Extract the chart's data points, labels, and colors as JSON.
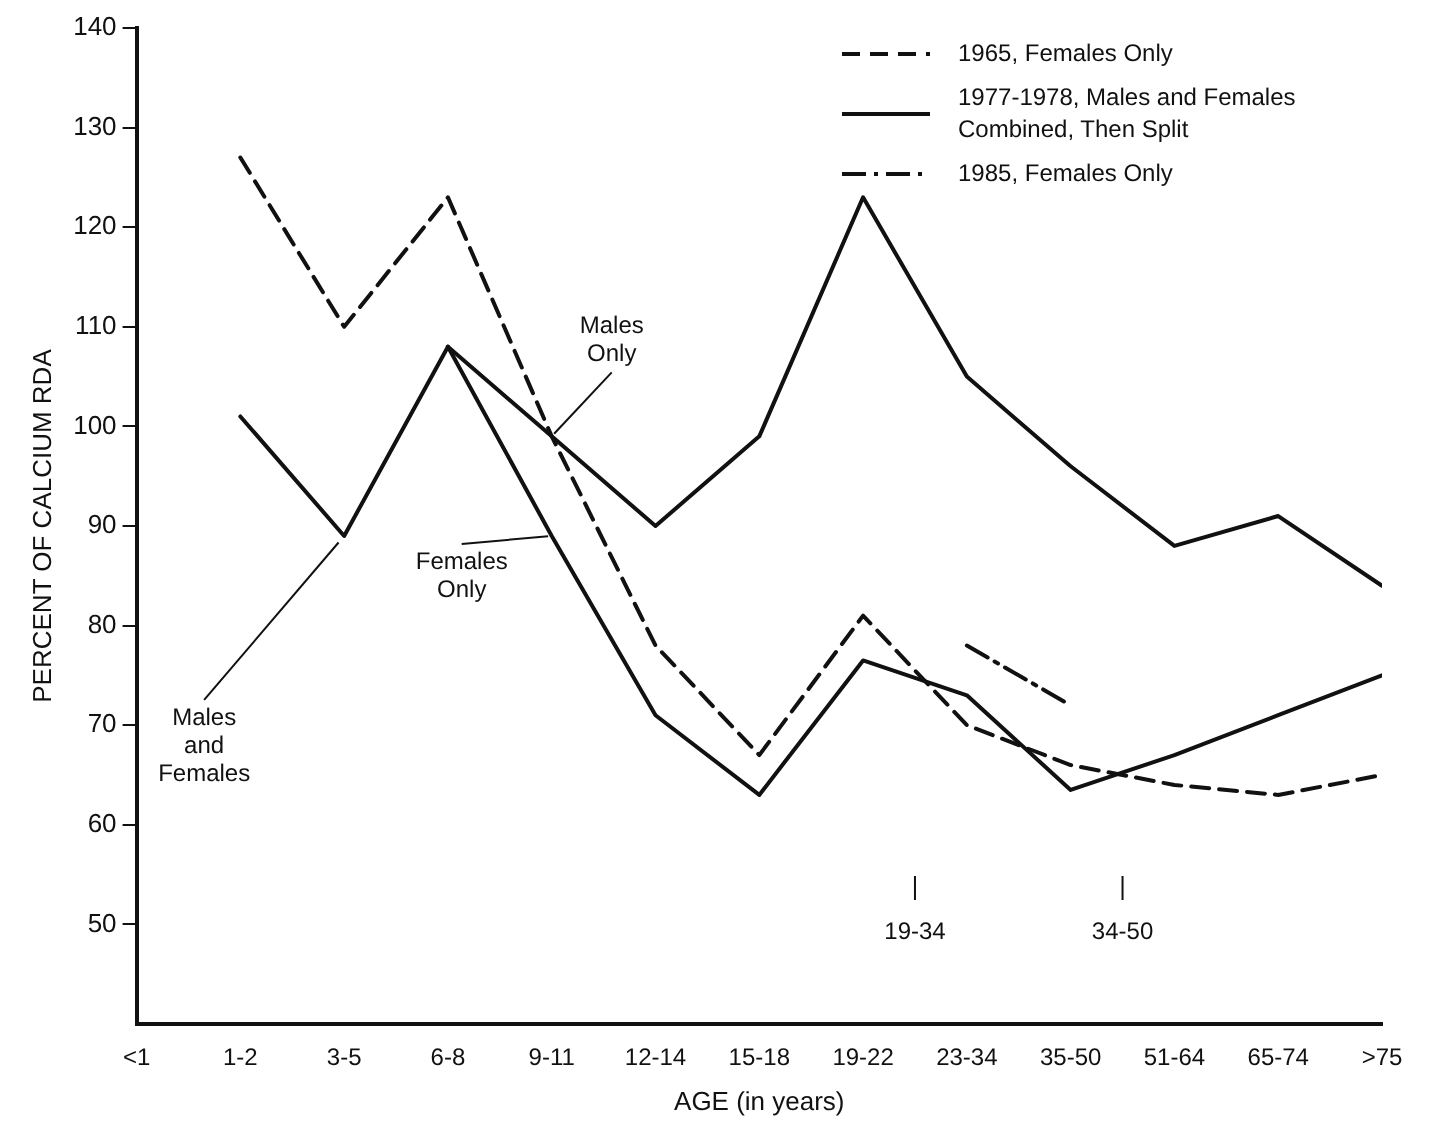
{
  "chart_data": {
    "type": "line",
    "xlabel": "AGE (in years)",
    "ylabel": "PERCENT OF CALCIUM RDA",
    "categories": [
      "<1",
      "1-2",
      "3-5",
      "6-8",
      "9-11",
      "12-14",
      "15-18",
      "19-22",
      "23-34",
      "35-50",
      "51-64",
      "65-74",
      ">75"
    ],
    "series": [
      {
        "name": "1965, Females Only",
        "color": "#111111",
        "line_style": "dashed",
        "values": [
          null,
          127,
          110,
          123,
          99,
          78,
          67,
          81,
          70,
          66,
          64,
          63,
          65
        ]
      },
      {
        "name": "1977-1978, Males and Females Combined, Then Split",
        "color": "#111111",
        "line_style": "solid",
        "values": [
          null,
          101,
          89,
          108,
          null,
          null,
          null,
          null,
          null,
          null,
          null,
          null,
          null
        ]
      },
      {
        "color": "#111111",
        "line_style": "solid",
        "values": [
          null,
          null,
          null,
          108,
          99,
          90,
          99,
          123,
          105,
          96,
          88,
          91,
          84
        ]
      },
      {
        "color": "#111111",
        "line_style": "solid",
        "values": [
          null,
          null,
          null,
          108,
          89,
          71,
          63,
          76.5,
          73,
          63.5,
          67,
          71,
          75
        ]
      },
      {
        "name": "1985, Females Only",
        "color": "#111111",
        "line_style": "dashdot",
        "values": [
          null,
          null,
          null,
          null,
          null,
          null,
          null,
          null,
          78,
          72,
          null,
          null,
          null
        ]
      }
    ],
    "ylim": [
      40,
      140
    ],
    "yticks": [
      50,
      60,
      70,
      80,
      90,
      100,
      110,
      120,
      130,
      140
    ],
    "annotations": [
      {
        "text": "Males Only",
        "x": "9-11",
        "y": 99
      },
      {
        "text": "Females Only",
        "x": "9-11",
        "y": 89
      },
      {
        "text": "Males and Females",
        "x": "3-5",
        "y": 89
      },
      "19-34",
      "34-50"
    ],
    "grid": false,
    "legend": "top right",
    "marker": "none"
  }
}
